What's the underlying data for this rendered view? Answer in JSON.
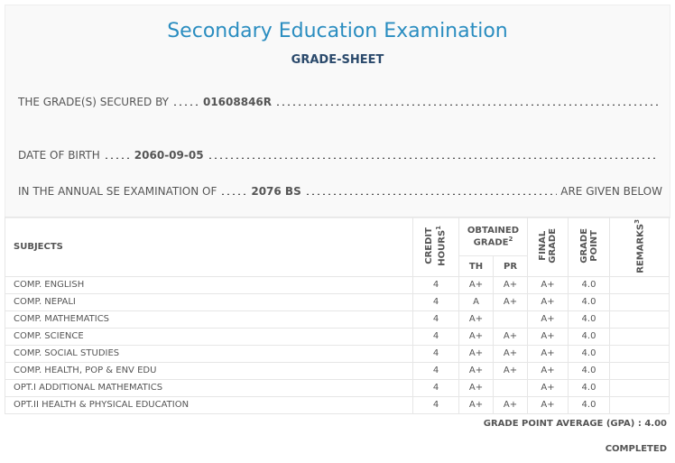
{
  "header": {
    "title": "Secondary Education Examination",
    "subtitle": "GRADE-SHEET"
  },
  "fields": [
    {
      "label": "THE GRADE(S) SECURED BY",
      "value": "01608846R"
    },
    {
      "label": "DATE OF BIRTH",
      "value": "2060-09-05"
    },
    {
      "label": "IN THE ANNUAL SE EXAMINATION OF",
      "value": "2076 BS",
      "suffix": "ARE GIVEN BELOW"
    }
  ],
  "table": {
    "columns": {
      "subjects": "SUBJECTS",
      "credit_hours": {
        "text": "CREDIT HOURS",
        "note": "1"
      },
      "obtained_grade": {
        "text": "OBTAINED GRADE",
        "note": "2"
      },
      "th": "TH",
      "pr": "PR",
      "final_grade": "FINAL GRADE",
      "grade_point": "GRADE POINT",
      "remarks": {
        "text": "REMARKS",
        "note": "3"
      }
    },
    "rows": [
      [
        "COMP. ENGLISH",
        "4",
        "A+",
        "A+",
        "A+",
        "4.0"
      ],
      [
        "COMP. NEPALI",
        "4",
        "A",
        "A+",
        "A+",
        "4.0"
      ],
      [
        "COMP. MATHEMATICS",
        "4",
        "A+",
        null,
        "A+",
        "4.0"
      ],
      [
        "COMP. SCIENCE",
        "4",
        "A+",
        "A+",
        "A+",
        "4.0"
      ],
      [
        "COMP. SOCIAL STUDIES",
        "4",
        "A+",
        "A+",
        "A+",
        "4.0"
      ],
      [
        "COMP. HEALTH, POP & ENV EDU",
        "4",
        "A+",
        "A+",
        "A+",
        "4.0"
      ],
      [
        "OPT.I ADDITIONAL MATHEMATICS",
        "4",
        "A+",
        null,
        "A+",
        "4.0"
      ],
      [
        "OPT.II HEALTH & PHYSICAL EDUCATION",
        "4",
        "A+",
        "A+",
        "A+",
        "4.0"
      ]
    ]
  },
  "footer": {
    "gpa_label": "GRADE POINT AVERAGE (GPA) :",
    "gpa": "4.00",
    "status": "COMPLETED"
  }
}
